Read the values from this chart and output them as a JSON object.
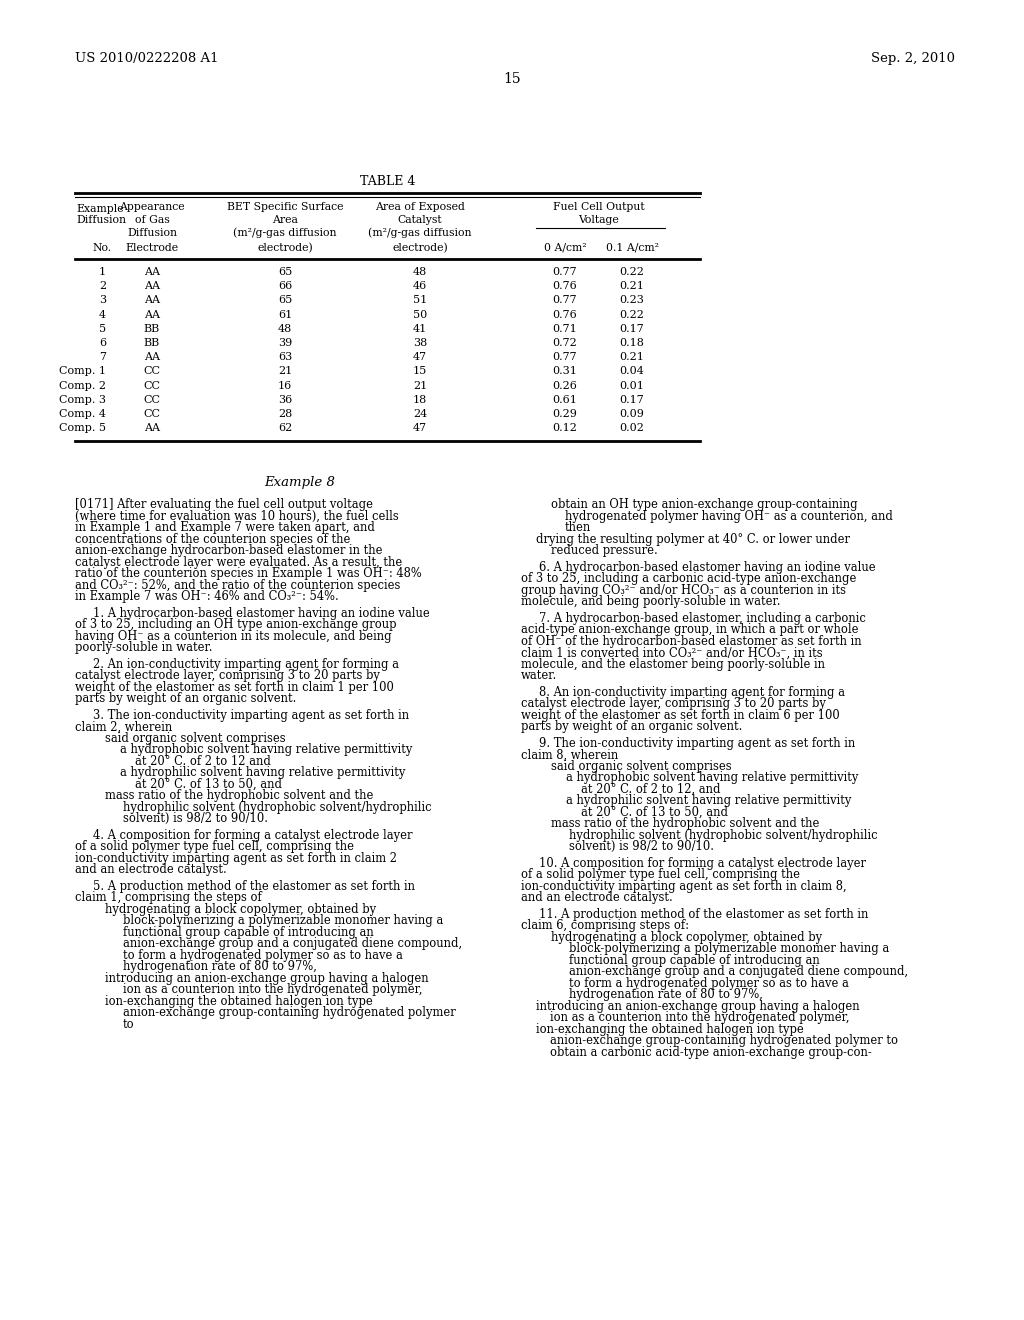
{
  "page_number": "15",
  "patent_number": "US 2010/0222208 A1",
  "patent_date": "Sep. 2, 2010",
  "table_title": "TABLE 4",
  "table_data": [
    [
      "1",
      "AA",
      "65",
      "48",
      "0.77",
      "0.22"
    ],
    [
      "2",
      "AA",
      "66",
      "46",
      "0.76",
      "0.21"
    ],
    [
      "3",
      "AA",
      "65",
      "51",
      "0.77",
      "0.23"
    ],
    [
      "4",
      "AA",
      "61",
      "50",
      "0.76",
      "0.22"
    ],
    [
      "5",
      "BB",
      "48",
      "41",
      "0.71",
      "0.17"
    ],
    [
      "6",
      "BB",
      "39",
      "38",
      "0.72",
      "0.18"
    ],
    [
      "7",
      "AA",
      "63",
      "47",
      "0.77",
      "0.21"
    ],
    [
      "Comp. 1",
      "CC",
      "21",
      "15",
      "0.31",
      "0.04"
    ],
    [
      "Comp. 2",
      "CC",
      "16",
      "21",
      "0.26",
      "0.01"
    ],
    [
      "Comp. 3",
      "CC",
      "36",
      "18",
      "0.61",
      "0.17"
    ],
    [
      "Comp. 4",
      "CC",
      "28",
      "24",
      "0.29",
      "0.09"
    ],
    [
      "Comp. 5",
      "AA",
      "62",
      "47",
      "0.12",
      "0.02"
    ]
  ],
  "bg_color": "#ffffff",
  "text_color": "#000000"
}
